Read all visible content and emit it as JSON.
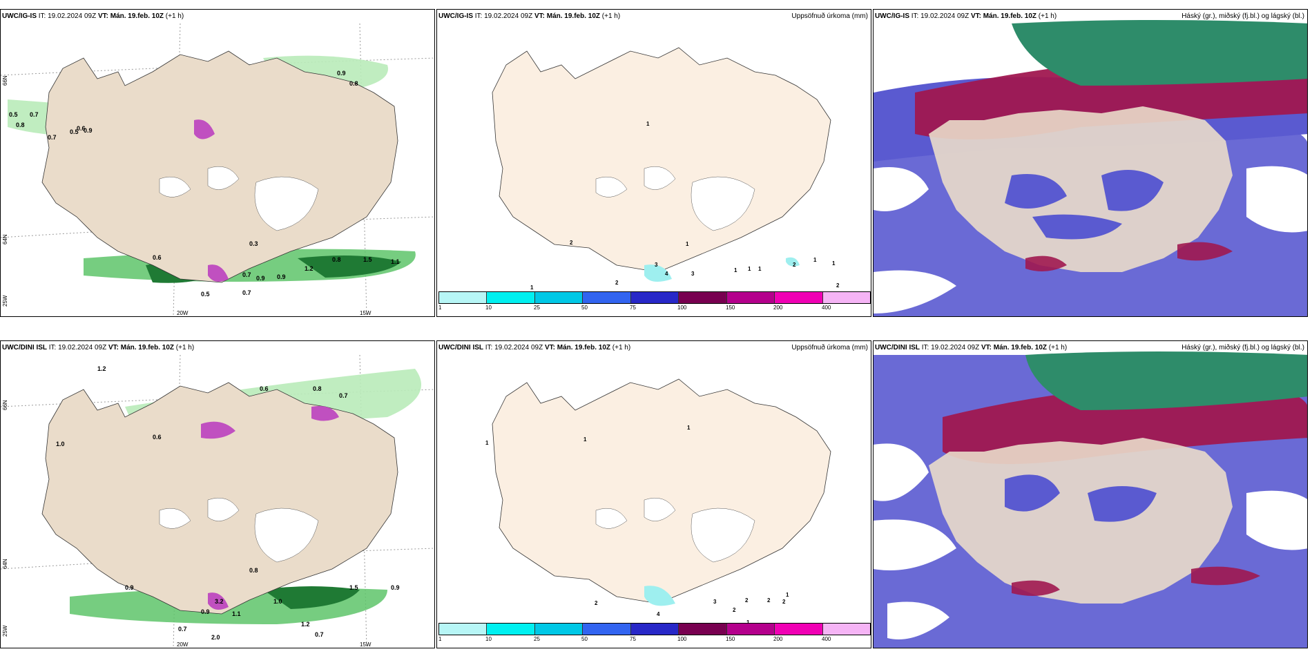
{
  "rows": [
    {
      "model": "UWC/IG-IS",
      "init": "19.02.2024 09Z",
      "valid": "Mán. 19.feb. 10Z",
      "lead": "(+1 h)"
    },
    {
      "model": "UWC/DINI ISL",
      "init": "19.02.2024 09Z",
      "valid": "Mán. 19.feb. 10Z",
      "lead": "(+1 h)"
    }
  ],
  "labels": {
    "it": "IT:",
    "vt": "VT:",
    "accum_title": "Uppsöfnuð úrkoma (mm)",
    "cloud_title": "Háský (gr.), miðský (fj.bl.) og lágský (bl.)"
  },
  "axes": {
    "lat_66": "66N",
    "lat_64": "64N",
    "lon_25": "25W",
    "lon_20": "20W",
    "lon_15": "15W"
  },
  "colorbar": {
    "ticks": [
      "1",
      "10",
      "25",
      "50",
      "75",
      "100",
      "150",
      "200",
      "400"
    ],
    "colors": [
      "#b7f6f6",
      "#00f0f0",
      "#00c8e6",
      "#3264f0",
      "#2828c8",
      "#780050",
      "#b4008c",
      "#f000b4",
      "#f5b4f5"
    ]
  },
  "precip_values_top": [
    "0.5",
    "0.7",
    "0.8",
    "0.7",
    "0.5",
    "0.6",
    "0.9",
    "0.9",
    "0.8",
    "0.7",
    "0.6",
    "0.9",
    "0.5",
    "0.7",
    "0.9",
    "1.2",
    "0.8",
    "1.5",
    "1.1",
    "0.3"
  ],
  "precip_values_bottom": [
    "1.2",
    "1.0",
    "0.6",
    "0.6",
    "0.8",
    "0.7",
    "0.9",
    "0.7",
    "0.9",
    "0.8",
    "1.5",
    "0.9",
    "1.0",
    "2.0",
    "1.2",
    "0.7",
    "1.1",
    "3.2"
  ],
  "accum_values_top": [
    "1",
    "2",
    "1",
    "3",
    "4",
    "3",
    "1",
    "1",
    "1",
    "2",
    "1",
    "1",
    "2",
    "2",
    "1"
  ],
  "accum_values_bottom": [
    "1",
    "1",
    "1",
    "2",
    "4",
    "3",
    "2",
    "2",
    "2",
    "1",
    "1",
    "2"
  ],
  "colors": {
    "land": "#eadcca",
    "land_light": "#fbefe2",
    "precip_light": "#b9ebb9",
    "precip_mid": "#5ec46a",
    "precip_dark": "#1f7a34",
    "high_cloud": "#a01850",
    "mid_cloud": "#2e8c6a",
    "low_cloud": "#5a5ad0"
  }
}
